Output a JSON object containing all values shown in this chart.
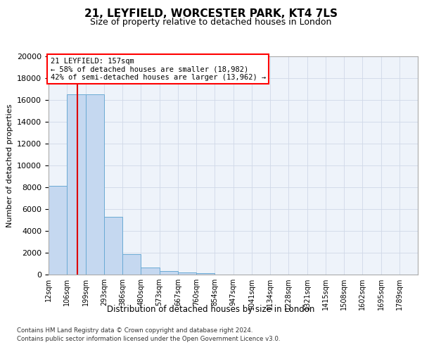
{
  "title1": "21, LEYFIELD, WORCESTER PARK, KT4 7LS",
  "title2": "Size of property relative to detached houses in London",
  "xlabel": "Distribution of detached houses by size in London",
  "ylabel": "Number of detached properties",
  "annotation_line1": "21 LEYFIELD: 157sqm",
  "annotation_line2": "← 58% of detached houses are smaller (18,982)",
  "annotation_line3": "42% of semi-detached houses are larger (13,962) →",
  "property_size": 157,
  "bar_edges": [
    12,
    106,
    199,
    293,
    386,
    480,
    573,
    667,
    760,
    854,
    947,
    1041,
    1134,
    1228,
    1321,
    1415,
    1508,
    1602,
    1695,
    1789,
    1882
  ],
  "bar_heights": [
    8100,
    16500,
    16500,
    5300,
    1850,
    650,
    300,
    220,
    130,
    0,
    0,
    0,
    0,
    0,
    0,
    0,
    0,
    0,
    0,
    0
  ],
  "bar_color": "#c5d8f0",
  "bar_edge_color": "#6aaad4",
  "red_line_color": "#dd0000",
  "grid_color": "#d0d8e8",
  "background_color": "#ffffff",
  "plot_bg_color": "#eef3fa",
  "footer_line1": "Contains HM Land Registry data © Crown copyright and database right 2024.",
  "footer_line2": "Contains public sector information licensed under the Open Government Licence v3.0.",
  "ylim": [
    0,
    20000
  ],
  "yticks": [
    0,
    2000,
    4000,
    6000,
    8000,
    10000,
    12000,
    14000,
    16000,
    18000,
    20000
  ]
}
